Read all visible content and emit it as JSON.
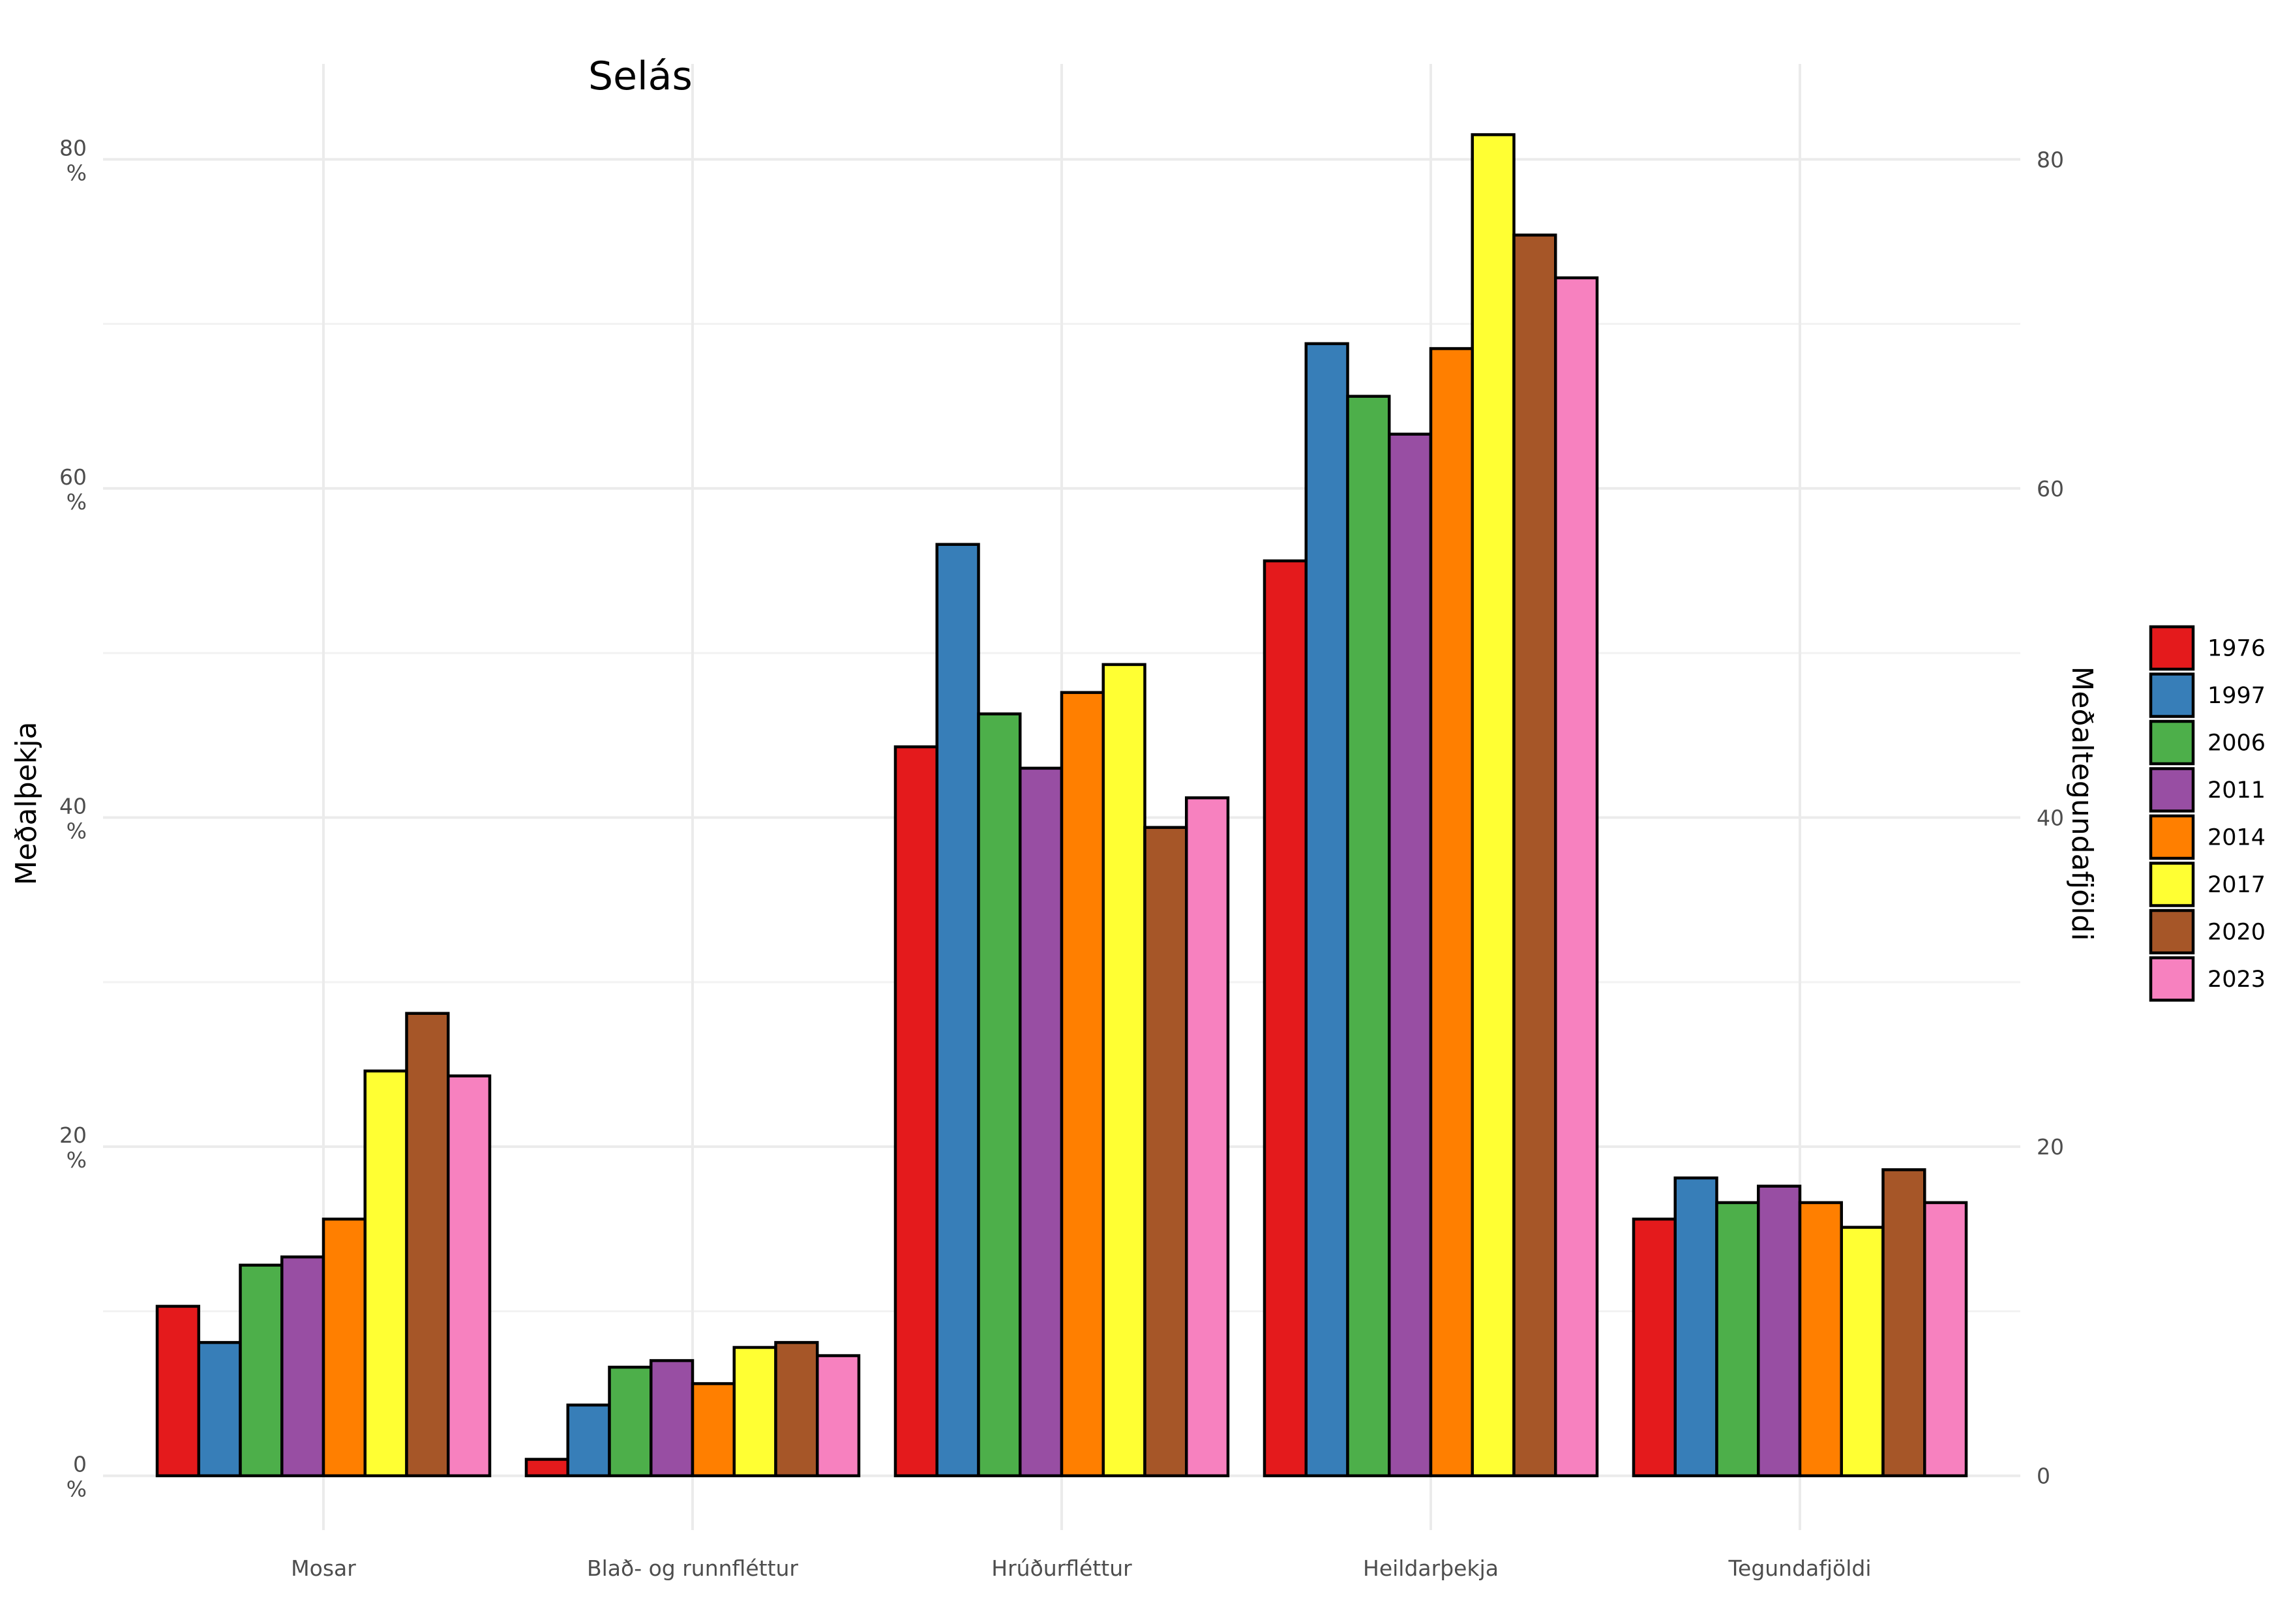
{
  "chart_data": {
    "type": "bar",
    "title": "Selás",
    "xlabel": "",
    "ylabel": "Meðalþekja",
    "y2label": "Meðaltegundafjöldi",
    "categories": [
      "Mosar",
      "Blað- og runnfléttur",
      "Hrúðurfléttur",
      "Heildarþekja",
      "Tegundafjöldi"
    ],
    "series": [
      {
        "name": "1976",
        "color": "#E41A1C",
        "values": [
          10.3,
          1.0,
          44.3,
          55.6,
          15.6
        ]
      },
      {
        "name": "1997",
        "color": "#377EB8",
        "values": [
          8.1,
          4.3,
          56.6,
          68.8,
          18.1
        ]
      },
      {
        "name": "2006",
        "color": "#4DAF4A",
        "values": [
          12.8,
          6.6,
          46.3,
          65.6,
          16.6
        ]
      },
      {
        "name": "2011",
        "color": "#984EA3",
        "values": [
          13.3,
          7.0,
          43.0,
          63.3,
          17.6
        ]
      },
      {
        "name": "2014",
        "color": "#FF7F00",
        "values": [
          15.6,
          5.6,
          47.6,
          68.5,
          16.6
        ]
      },
      {
        "name": "2017",
        "color": "#FFFF33",
        "values": [
          24.6,
          7.8,
          49.3,
          81.5,
          15.1
        ]
      },
      {
        "name": "2020",
        "color": "#A65628",
        "values": [
          28.1,
          8.1,
          39.4,
          75.4,
          18.6
        ]
      },
      {
        "name": "2023",
        "color": "#F781BF",
        "values": [
          24.3,
          7.3,
          41.2,
          72.8,
          16.6
        ]
      }
    ],
    "ylim": [
      -3.3,
      85.8
    ],
    "y_ticks": [
      0,
      20,
      40,
      60,
      80
    ],
    "y_tick_labels": [
      "0\n%",
      "20\n%",
      "40\n%",
      "60\n%",
      "80\n%"
    ],
    "y2_ticks": [
      0,
      20,
      40,
      60,
      80
    ],
    "y2_tick_labels": [
      "0",
      "20",
      "40",
      "60",
      "80"
    ],
    "grid": true,
    "legend_position": "right"
  }
}
